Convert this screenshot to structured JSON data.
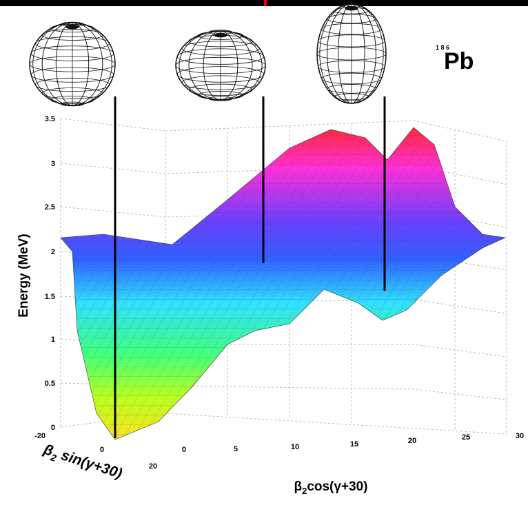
{
  "isotope": {
    "mass": "1 8 6",
    "element": "Pb"
  },
  "z_axis": {
    "label": "Energy (MeV)",
    "ticks": [
      "3.5",
      "3",
      "2.5",
      "2",
      "1.5",
      "1",
      "0.5",
      "0"
    ]
  },
  "x_axis": {
    "prefix": "β",
    "sub": "2",
    "rest": "cos(γ+30)",
    "ticks": [
      "0",
      "5",
      "10",
      "15",
      "20",
      "25",
      "30"
    ]
  },
  "y_axis": {
    "prefix": "β",
    "sub": "2",
    "rest": " sin(γ+30)",
    "ticks": [
      "-20",
      "0",
      "20"
    ]
  }
}
